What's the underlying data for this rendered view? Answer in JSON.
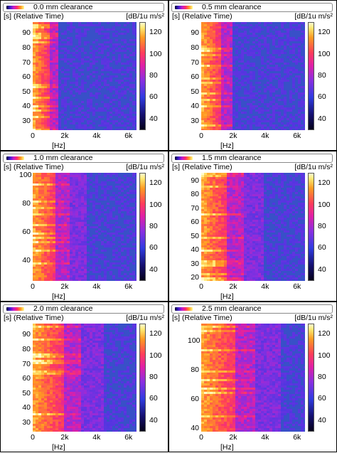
{
  "chart_data": [
    {
      "type": "heatmap",
      "title": "0.0 mm clearance",
      "ylabel": "[s] (Relative Time)",
      "xlabel": "[Hz]",
      "colorbar_label": "dB/1u m/s²",
      "y_ticks": [
        30,
        40,
        50,
        60,
        70,
        80,
        90
      ],
      "ylim": [
        24,
        98
      ],
      "x_ticks": [
        "0",
        "2k",
        "4k",
        "6k"
      ],
      "xlim": [
        0,
        6500
      ],
      "colorbar_ticks": [
        40,
        60,
        80,
        100,
        120
      ],
      "clim": [
        30,
        130
      ],
      "intensity": 0.0
    },
    {
      "type": "heatmap",
      "title": "0.5 mm clearance",
      "ylabel": "[s] (Relative Time)",
      "xlabel": "[Hz]",
      "colorbar_label": "dB/1u m/s²",
      "y_ticks": [
        30,
        40,
        50,
        60,
        70,
        80,
        90
      ],
      "ylim": [
        24,
        98
      ],
      "x_ticks": [
        "0",
        "2k",
        "4k",
        "6k"
      ],
      "xlim": [
        0,
        6500
      ],
      "colorbar_ticks": [
        40,
        60,
        80,
        100,
        120
      ],
      "clim": [
        30,
        130
      ],
      "intensity": 0.5
    },
    {
      "type": "heatmap",
      "title": "1.0 mm clearance",
      "ylabel": "[s] (Relative Time)",
      "xlabel": "[Hz]",
      "colorbar_label": "dB/1u m/s²",
      "y_ticks": [
        40,
        60,
        80,
        100
      ],
      "ylim": [
        26,
        102
      ],
      "x_ticks": [
        "0",
        "2k",
        "4k",
        "6k"
      ],
      "xlim": [
        0,
        6500
      ],
      "colorbar_ticks": [
        40,
        60,
        80,
        100,
        120
      ],
      "clim": [
        30,
        130
      ],
      "intensity": 1.0
    },
    {
      "type": "heatmap",
      "title": "1.5 mm clearance",
      "ylabel": "[s] (Relative Time)",
      "xlabel": "[Hz]",
      "colorbar_label": "dB/1u m/s²",
      "y_ticks": [
        20,
        30,
        40,
        50,
        60,
        70,
        80,
        90
      ],
      "ylim": [
        18,
        96
      ],
      "x_ticks": [
        "0",
        "2k",
        "4k",
        "6k"
      ],
      "xlim": [
        0,
        6500
      ],
      "colorbar_ticks": [
        40,
        60,
        80,
        100,
        120
      ],
      "clim": [
        30,
        130
      ],
      "intensity": 1.5
    },
    {
      "type": "heatmap",
      "title": "2.0 mm clearance",
      "ylabel": "[s] (Relative Time)",
      "xlabel": "[Hz]",
      "colorbar_label": "dB/1u m/s²",
      "y_ticks": [
        30,
        40,
        50,
        60,
        70,
        80,
        90
      ],
      "ylim": [
        24,
        98
      ],
      "x_ticks": [
        "0",
        "2k",
        "4k",
        "6k"
      ],
      "xlim": [
        0,
        6500
      ],
      "colorbar_ticks": [
        40,
        60,
        80,
        100,
        120
      ],
      "clim": [
        30,
        130
      ],
      "intensity": 2.0
    },
    {
      "type": "heatmap",
      "title": "2.5 mm clearance",
      "ylabel": "[s] (Relative Time)",
      "xlabel": "[Hz]",
      "colorbar_label": "dB/1u m/s²",
      "y_ticks": [
        40,
        60,
        80,
        100
      ],
      "ylim": [
        38,
        112
      ],
      "x_ticks": [
        "0",
        "2k",
        "4k",
        "6k"
      ],
      "xlim": [
        0,
        6500
      ],
      "colorbar_ticks": [
        40,
        60,
        80,
        100,
        120
      ],
      "clim": [
        30,
        130
      ],
      "intensity": 2.5
    }
  ]
}
